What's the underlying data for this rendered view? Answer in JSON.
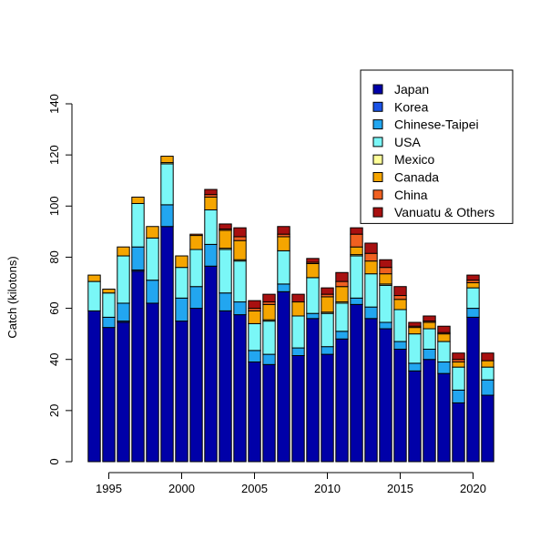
{
  "chart_data": {
    "type": "bar",
    "stacked": true,
    "title": "",
    "xlabel": "",
    "ylabel": "Catch (kilotons)",
    "ylim": [
      0,
      140
    ],
    "y_ticks": [
      0,
      20,
      40,
      60,
      80,
      100,
      120,
      140
    ],
    "x_tick_labels": [
      "1995",
      "2000",
      "2005",
      "2010",
      "2015",
      "2020"
    ],
    "legend_position": "top-right",
    "grid": false,
    "categories": [
      1994,
      1995,
      1996,
      1997,
      1998,
      1999,
      2000,
      2001,
      2002,
      2003,
      2004,
      2005,
      2006,
      2007,
      2008,
      2009,
      2010,
      2011,
      2012,
      2013,
      2014,
      2015,
      2016,
      2017,
      2018,
      2019,
      2020,
      2021
    ],
    "series": [
      {
        "name": "Japan",
        "color": "#0000a8",
        "values": [
          59,
          52.5,
          54.5,
          74.5,
          62,
          92,
          55,
          60,
          76.5,
          59,
          57.5,
          39,
          38,
          66.5,
          41.5,
          56,
          42,
          48,
          61.5,
          56,
          52,
          44,
          35.5,
          40,
          34.5,
          23,
          56.5,
          26
        ]
      },
      {
        "name": "Korea",
        "color": "#1a52e6",
        "values": [
          0,
          0,
          0.5,
          0.5,
          0,
          0,
          0,
          0,
          0,
          0,
          0,
          0,
          0,
          0,
          0,
          0,
          0,
          0,
          0,
          0,
          0,
          0,
          0,
          0,
          0,
          0,
          0,
          0
        ]
      },
      {
        "name": "Chinese-Taipei",
        "color": "#22a6f0",
        "values": [
          0,
          4,
          7,
          9,
          9,
          8.5,
          9,
          8.5,
          8.5,
          7,
          5,
          4.5,
          4,
          3,
          3,
          2,
          3,
          3,
          2.5,
          4.5,
          2.5,
          3,
          3,
          4,
          4.5,
          5,
          3.5,
          6
        ]
      },
      {
        "name": "USA",
        "color": "#7af7f7",
        "values": [
          11.5,
          9.5,
          18.5,
          17,
          16.5,
          16,
          12,
          14.5,
          13.5,
          17,
          16,
          10.5,
          13,
          13,
          12.5,
          14,
          13,
          11,
          16.5,
          13,
          14.5,
          12.5,
          11.5,
          8,
          8,
          9,
          8,
          5
        ]
      },
      {
        "name": "Mexico",
        "color": "#ffff99",
        "values": [
          0,
          0,
          0,
          0,
          0,
          0.5,
          0,
          0,
          0,
          0.5,
          0.5,
          0,
          0.5,
          0,
          0,
          0,
          0.5,
          0.5,
          0.5,
          0,
          0.5,
          0,
          0,
          0,
          0,
          0,
          0,
          0
        ]
      },
      {
        "name": "Canada",
        "color": "#f5a500",
        "values": [
          2.5,
          1.5,
          3.5,
          2.5,
          4.5,
          2.5,
          4.5,
          5.5,
          5,
          7,
          7.5,
          5,
          6,
          5.5,
          5.5,
          5.5,
          6,
          6,
          3,
          5,
          4,
          4,
          2.5,
          2.5,
          3,
          2,
          2,
          2.5
        ]
      },
      {
        "name": "China",
        "color": "#f06020",
        "values": [
          0,
          0,
          0,
          0,
          0,
          0,
          0,
          0.5,
          1,
          0.5,
          1.5,
          1,
          1,
          1,
          0,
          0.5,
          1,
          2,
          5,
          3,
          2.5,
          1.5,
          0.5,
          0.5,
          0.5,
          1,
          1,
          0
        ]
      },
      {
        "name": "Vanuatu & Others",
        "color": "#a81010",
        "values": [
          0,
          0,
          0,
          0,
          0,
          0,
          0,
          0,
          2,
          2,
          3.5,
          3,
          3,
          3,
          3,
          1.5,
          2.5,
          3.5,
          2.5,
          4,
          3,
          3.5,
          1.5,
          2,
          2.5,
          2.5,
          2,
          3
        ]
      }
    ]
  }
}
